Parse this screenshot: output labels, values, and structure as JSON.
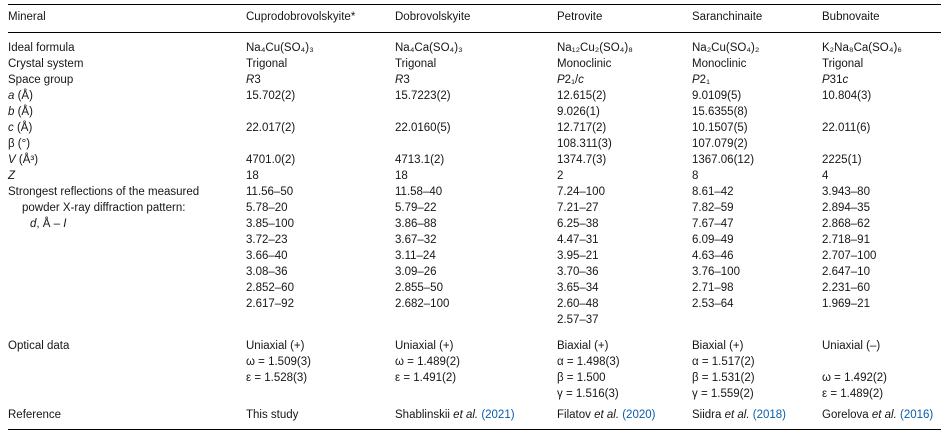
{
  "page": {
    "background": "#ffffff",
    "text_color": "#161616",
    "rule_color": "#000000",
    "link_color": "#0a5ca8"
  },
  "table": {
    "header": [
      "Mineral",
      "Cuprodobrovolskyite*",
      "Dobrovolskyite",
      "Petrovite",
      "Saranchinaite",
      "Bubnovaite"
    ],
    "rows": [
      {
        "name": "row-ideal-formula",
        "label": [
          "Ideal formula"
        ],
        "cells": [
          "Na₄Cu(SO₄)₃",
          "Na₄Ca(SO₄)₃",
          "Na₁₂Cu₂(SO₄)₈",
          "Na₂Cu(SO₄)₂",
          "K₂Na₈Ca(SO₄)₆"
        ]
      },
      {
        "name": "row-crystal-system",
        "label": [
          "Crystal system"
        ],
        "cells": [
          "Trigonal",
          "Trigonal",
          "Monoclinic",
          "Monoclinic",
          "Trigonal"
        ]
      },
      {
        "name": "row-space-group",
        "label": [
          "Space group"
        ],
        "cells": [
          [
            [
              {
                "t": "R",
                "i": true
              },
              "3"
            ]
          ],
          [
            [
              {
                "t": "R",
                "i": true
              },
              "3"
            ]
          ],
          [
            [
              {
                "t": "P",
                "i": true
              },
              "2₁/",
              {
                "t": "c",
                "i": true
              }
            ]
          ],
          [
            [
              {
                "t": "P",
                "i": true
              },
              "2₁"
            ]
          ],
          [
            [
              {
                "t": "P",
                "i": true
              },
              "31",
              {
                "t": "c",
                "i": true
              }
            ]
          ]
        ]
      },
      {
        "name": "row-a",
        "label": [
          [
            {
              "t": "a",
              "i": true
            },
            " (Å)"
          ]
        ],
        "cells": [
          "15.702(2)",
          "15.7223(2)",
          "12.615(2)",
          "9.0109(5)",
          "10.804(3)"
        ]
      },
      {
        "name": "row-b",
        "label": [
          [
            {
              "t": "b",
              "i": true
            },
            " (Å)"
          ]
        ],
        "cells": [
          "",
          "",
          "9.026(1)",
          "15.6355(8)",
          ""
        ]
      },
      {
        "name": "row-c",
        "label": [
          [
            {
              "t": "c",
              "i": true
            },
            " (Å)"
          ]
        ],
        "cells": [
          "22.017(2)",
          "22.0160(5)",
          "12.717(2)",
          "10.1507(5)",
          "22.011(6)"
        ]
      },
      {
        "name": "row-beta",
        "label": [
          "β (°)"
        ],
        "cells": [
          "",
          "",
          "108.311(3)",
          "107.079(2)",
          ""
        ]
      },
      {
        "name": "row-volume",
        "label": [
          [
            {
              "t": "V",
              "i": true
            },
            " (Å³)"
          ]
        ],
        "cells": [
          "4701.0(2)",
          "4713.1(2)",
          "1374.7(3)",
          "1367.06(12)",
          "2225(1)"
        ]
      },
      {
        "name": "row-z",
        "label": [
          [
            {
              "t": "Z",
              "i": true
            }
          ]
        ],
        "cells": [
          "18",
          "18",
          "2",
          "8",
          "4"
        ]
      },
      {
        "name": "row-strongest-reflections",
        "label": [
          "Strongest reflections of the measured",
          {
            "ind": 1,
            "segs": [
              "powder X-ray diffraction pattern:"
            ]
          },
          {
            "ind": 2,
            "segs": [
              {
                "t": "d",
                "i": true
              },
              ", Å – ",
              {
                "t": "I",
                "i": true
              }
            ]
          }
        ],
        "cells": [
          [
            "11.56–50",
            "5.78–20",
            "3.85–100",
            "3.72–23",
            "3.66–40",
            "3.08–36",
            "2.852–60",
            "2.617–92"
          ],
          [
            "11.58–40",
            "5.79–22",
            "3.86–88",
            "3.67–32",
            "3.11–24",
            "3.09–26",
            "2.855–50",
            "2.682–100"
          ],
          [
            "7.24–100",
            "7.21–27",
            "6.25–38",
            "4.47–31",
            "3.95–21",
            "3.70–36",
            "3.65–34",
            "2.60–48",
            "2.57–37"
          ],
          [
            "8.61–42",
            "7.82–59",
            "7.67–47",
            "6.09–49",
            "4.63–46",
            "3.76–100",
            "2.71–98",
            "2.53–64"
          ],
          [
            "3.943–80",
            "2.894–35",
            "2.868–62",
            "2.718–91",
            "2.707–100",
            "2.647–10",
            "2.231–60",
            "1.969–21"
          ]
        ]
      },
      {
        "name": "row-optical-data",
        "label": [
          "Optical data"
        ],
        "cells": [
          [
            "Uniaxial (+)",
            "ω = 1.509(3)",
            "ε = 1.528(3)"
          ],
          [
            "Uniaxial (+)",
            "ω = 1.489(2)",
            "ε = 1.491(2)"
          ],
          [
            "Biaxial (+)",
            "α = 1.498(3)",
            "β = 1.500",
            "γ = 1.516(3)"
          ],
          [
            "Biaxial (+)",
            "α = 1.517(2)",
            "β = 1.531(2)",
            "γ = 1.559(2)"
          ],
          [
            "Uniaxial (–)",
            "",
            "ω = 1.492(2)",
            "ε = 1.489(2)"
          ]
        ]
      },
      {
        "name": "row-reference",
        "label": [
          "Reference"
        ],
        "cells": [
          [
            "This study"
          ],
          [
            [
              "Shablinskii ",
              {
                "t": "et al.",
                "i": true
              },
              " ",
              {
                "t": "(2021)",
                "link": true
              }
            ]
          ],
          [
            [
              "Filatov ",
              {
                "t": "et al.",
                "i": true
              },
              " ",
              {
                "t": "(2020)",
                "link": true
              }
            ]
          ],
          [
            [
              "Siidra ",
              {
                "t": "et al.",
                "i": true
              },
              " ",
              {
                "t": "(2018)",
                "link": true
              }
            ]
          ],
          [
            [
              "Gorelova ",
              {
                "t": "et al.",
                "i": true
              },
              " ",
              {
                "t": "(2016)",
                "link": true
              }
            ]
          ]
        ]
      }
    ]
  }
}
